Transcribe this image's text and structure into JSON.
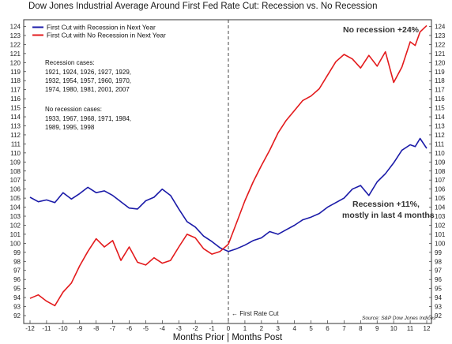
{
  "title": "Dow Jones Industrial Average Around First Fed Rate Cut: Recession vs. No Recession",
  "legend": {
    "recession": "First Cut with Recession in Next Year",
    "no_recession": "First Cut with No Recession in Next Year"
  },
  "notes": {
    "recession_heading": "Recession cases:",
    "recession_lines": [
      "1921, 1924, 1926, 1927, 1929,",
      "1932, 1954, 1957, 1960, 1970,",
      "1974, 1980, 1981, 2001, 2007"
    ],
    "no_recession_heading": "No recession cases:",
    "no_recession_lines": [
      "1933, 1967, 1968, 1971, 1984,",
      "1989, 1995, 1998"
    ]
  },
  "annotations": {
    "no_recession": "No recession +24%",
    "recession_line1": "Recession +11%,",
    "recession_line2": "mostly in last 4 months",
    "first_rate_cut": "← First Rate Cut",
    "source": "Source: S&P Dow Jones Indices"
  },
  "colors": {
    "recession": "#1a1aa8",
    "no_recession": "#e31a1c",
    "cut_line": "#444444"
  },
  "chart_data": {
    "type": "line",
    "title": "Dow Jones Industrial Average Around First Fed Rate Cut: Recession vs. No Recession",
    "xlabel": "Months Prior | Months Post",
    "ylabel": "",
    "xlim": [
      -12,
      12
    ],
    "ylim": [
      92,
      124
    ],
    "x_ticks": [
      -12,
      -11,
      -10,
      -9,
      -8,
      -7,
      -6,
      -5,
      -4,
      -3,
      -2,
      -1,
      0,
      1,
      2,
      3,
      4,
      5,
      6,
      7,
      8,
      9,
      10,
      11,
      12
    ],
    "y_ticks": [
      92,
      93,
      94,
      95,
      96,
      97,
      98,
      99,
      100,
      101,
      102,
      103,
      104,
      105,
      106,
      107,
      108,
      109,
      110,
      111,
      112,
      113,
      114,
      115,
      116,
      117,
      118,
      119,
      120,
      121,
      122,
      123,
      124
    ],
    "vertical_line_x": 0,
    "legend_position": "top-left",
    "series": [
      {
        "name": "First Cut with Recession in Next Year",
        "color": "#1a1aa8",
        "x": [
          -12,
          -11.5,
          -11,
          -10.5,
          -10,
          -9.5,
          -9,
          -8.5,
          -8,
          -7.5,
          -7,
          -6.5,
          -6,
          -5.5,
          -5,
          -4.5,
          -4,
          -3.5,
          -3,
          -2.5,
          -2,
          -1.5,
          -1,
          -0.5,
          0,
          0.5,
          1,
          1.5,
          2,
          2.5,
          3,
          3.5,
          4,
          4.5,
          5,
          5.5,
          6,
          6.5,
          7,
          7.5,
          8,
          8.5,
          9,
          9.5,
          10,
          10.5,
          11,
          11.3,
          11.6,
          12
        ],
        "y": [
          105.1,
          104.6,
          104.8,
          104.5,
          105.6,
          104.9,
          105.5,
          106.2,
          105.6,
          105.8,
          105.3,
          104.6,
          103.9,
          103.8,
          104.7,
          105.1,
          106.0,
          105.3,
          103.8,
          102.4,
          101.8,
          100.8,
          100.2,
          99.5,
          99.1,
          99.4,
          99.8,
          100.3,
          100.6,
          101.3,
          101.0,
          101.5,
          102.0,
          102.6,
          102.9,
          103.3,
          104.0,
          104.5,
          105.0,
          106.0,
          106.4,
          105.3,
          106.8,
          107.7,
          108.9,
          110.3,
          110.9,
          110.7,
          111.6,
          110.5
        ]
      },
      {
        "name": "First Cut with No Recession in Next Year",
        "color": "#e31a1c",
        "x": [
          -12,
          -11.5,
          -11,
          -10.5,
          -10,
          -9.5,
          -9,
          -8.5,
          -8,
          -7.5,
          -7,
          -6.5,
          -6,
          -5.5,
          -5,
          -4.5,
          -4,
          -3.5,
          -3,
          -2.5,
          -2,
          -1.5,
          -1,
          -0.5,
          0,
          0.5,
          1,
          1.5,
          2,
          2.5,
          3,
          3.5,
          4,
          4.5,
          5,
          5.5,
          6,
          6.5,
          7,
          7.5,
          8,
          8.5,
          9,
          9.5,
          10,
          10.5,
          11,
          11.3,
          11.6,
          12
        ],
        "y": [
          93.9,
          94.3,
          93.6,
          93.1,
          94.6,
          95.6,
          97.5,
          99.1,
          100.5,
          99.6,
          100.3,
          98.1,
          99.6,
          97.9,
          97.6,
          98.4,
          97.8,
          98.1,
          99.6,
          101.0,
          100.6,
          99.4,
          98.8,
          99.1,
          99.9,
          102.3,
          104.7,
          106.8,
          108.6,
          110.3,
          112.2,
          113.6,
          114.7,
          115.8,
          116.3,
          117.1,
          118.6,
          120.1,
          120.9,
          120.4,
          119.4,
          120.8,
          119.6,
          121.2,
          117.8,
          119.5,
          122.3,
          121.9,
          123.4,
          124.1
        ]
      }
    ]
  }
}
